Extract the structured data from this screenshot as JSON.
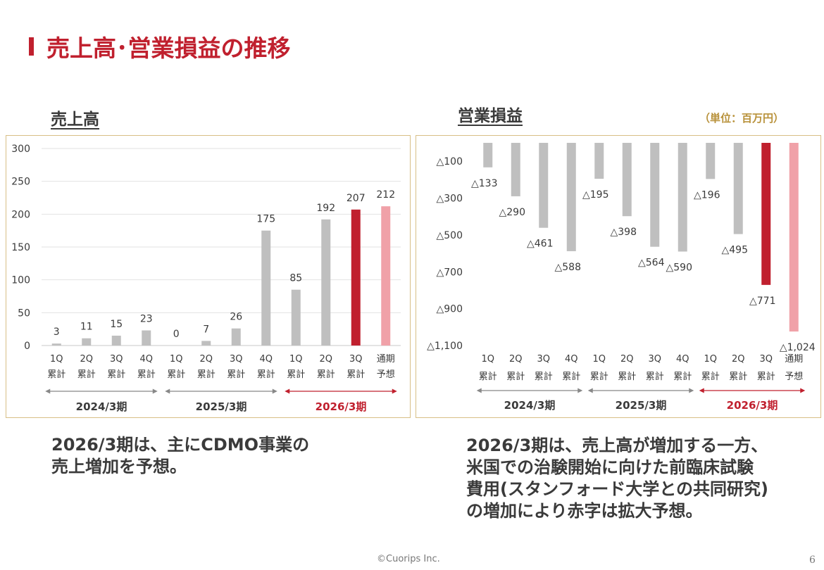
{
  "page": {
    "title": "売上高･営業損益の推移",
    "footer": "©Cuorips Inc.",
    "page_number": "6"
  },
  "sales": {
    "title": "売上高",
    "description": "2026/3期は、主にCDMO事業の\n売上増加を予想。"
  },
  "op": {
    "title": "営業損益",
    "unit": "（単位：百万円）",
    "description": "2026/3期は、売上高が増加する一方、\n米国での治験開始に向けた前臨床試験\n費用(スタンフォード大学との共同研究)\nの増加により赤字は拡大予想。"
  },
  "colors": {
    "accent": "#c0202e",
    "actual_bar": "#bfbfbf",
    "current_bar": "#c0202e",
    "forecast_bar": "#f0a1a8",
    "border": "#d8bf86",
    "unit_text": "#b8913a"
  },
  "chart_data": [
    {
      "type": "bar",
      "categories": [
        [
          "1Q",
          "累計"
        ],
        [
          "2Q",
          "累計"
        ],
        [
          "3Q",
          "累計"
        ],
        [
          "4Q",
          "累計"
        ],
        [
          "1Q",
          "累計"
        ],
        [
          "2Q",
          "累計"
        ],
        [
          "3Q",
          "累計"
        ],
        [
          "4Q",
          "累計"
        ],
        [
          "1Q",
          "累計"
        ],
        [
          "2Q",
          "累計"
        ],
        [
          "3Q",
          "累計"
        ],
        [
          "通期",
          "予想"
        ]
      ],
      "values": [
        3,
        11,
        15,
        23,
        0,
        7,
        26,
        175,
        85,
        192,
        207,
        212
      ],
      "value_labels": [
        "3",
        "11",
        "15",
        "23",
        "0",
        "7",
        "26",
        "175",
        "85",
        "192",
        "207",
        "212"
      ],
      "bar_types": [
        "actual",
        "actual",
        "actual",
        "actual",
        "actual",
        "actual",
        "actual",
        "actual",
        "actual",
        "actual",
        "current",
        "forecast"
      ],
      "ylim": [
        0,
        300
      ],
      "yticks": [
        0,
        50,
        100,
        150,
        200,
        250,
        300
      ],
      "ytick_labels": [
        "0",
        "50",
        "100",
        "150",
        "200",
        "250",
        "300"
      ],
      "groups": [
        {
          "label": "2024/3期",
          "start": 0,
          "end": 3,
          "highlight": false
        },
        {
          "label": "2025/3期",
          "start": 4,
          "end": 7,
          "highlight": false
        },
        {
          "label": "2026/3期",
          "start": 8,
          "end": 11,
          "highlight": true
        }
      ],
      "grid": true
    },
    {
      "type": "bar",
      "categories": [
        [
          "1Q",
          "累計"
        ],
        [
          "2Q",
          "累計"
        ],
        [
          "3Q",
          "累計"
        ],
        [
          "4Q",
          "累計"
        ],
        [
          "1Q",
          "累計"
        ],
        [
          "2Q",
          "累計"
        ],
        [
          "3Q",
          "累計"
        ],
        [
          "4Q",
          "累計"
        ],
        [
          "1Q",
          "累計"
        ],
        [
          "2Q",
          "累計"
        ],
        [
          "3Q",
          "累計"
        ],
        [
          "通期",
          "予想"
        ]
      ],
      "values": [
        -133,
        -290,
        -461,
        -588,
        -195,
        -398,
        -564,
        -590,
        -196,
        -495,
        -771,
        -1024
      ],
      "value_labels": [
        "△133",
        "△290",
        "△461",
        "△588",
        "△195",
        "△398",
        "△564",
        "△590",
        "△196",
        "△495",
        "△771",
        "△1,024"
      ],
      "bar_types": [
        "actual",
        "actual",
        "actual",
        "actual",
        "actual",
        "actual",
        "actual",
        "actual",
        "actual",
        "actual",
        "current",
        "forecast"
      ],
      "ylim": [
        -1100,
        0
      ],
      "yticks": [
        -100,
        -300,
        -500,
        -700,
        -900,
        -1100
      ],
      "ytick_labels": [
        "△100",
        "△300",
        "△500",
        "△700",
        "△900",
        "△1,100"
      ],
      "groups": [
        {
          "label": "2024/3期",
          "start": 0,
          "end": 3,
          "highlight": false
        },
        {
          "label": "2025/3期",
          "start": 4,
          "end": 7,
          "highlight": false
        },
        {
          "label": "2026/3期",
          "start": 8,
          "end": 11,
          "highlight": true
        }
      ],
      "grid": false
    }
  ]
}
